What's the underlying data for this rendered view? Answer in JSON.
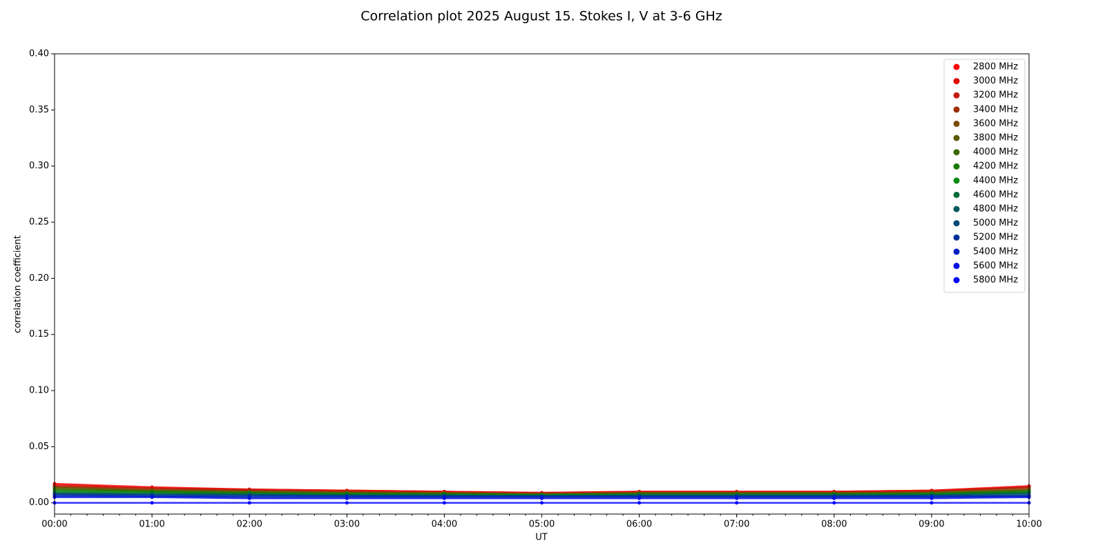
{
  "chart_data": {
    "type": "scatter",
    "title": "Correlation plot 2025 August 15. Stokes I, V at 3-6 GHz",
    "xlabel": "UT",
    "ylabel": "correlation coefficient",
    "x": [
      "00:00",
      "01:00",
      "02:00",
      "03:00",
      "04:00",
      "05:00",
      "06:00",
      "07:00",
      "08:00",
      "09:00",
      "10:00"
    ],
    "xlim": [
      "00:00",
      "10:00"
    ],
    "xticks": [
      "00:00",
      "01:00",
      "02:00",
      "03:00",
      "04:00",
      "05:00",
      "06:00",
      "07:00",
      "08:00",
      "09:00",
      "10:00"
    ],
    "ylim": [
      -0.01,
      0.4
    ],
    "yticks": [
      {
        "value": 0,
        "label": "0.00"
      },
      {
        "value": 0.05,
        "label": "0.05"
      },
      {
        "value": 0.1,
        "label": "0.10"
      },
      {
        "value": 0.15,
        "label": "0.15"
      },
      {
        "value": 0.2,
        "label": "0.20"
      },
      {
        "value": 0.25,
        "label": "0.25"
      },
      {
        "value": 0.3,
        "label": "0.30"
      },
      {
        "value": 0.35,
        "label": "0.35"
      },
      {
        "value": 0.4,
        "label": "0.40"
      }
    ],
    "legend": "upper right",
    "series": [
      {
        "name": "2800 MHz",
        "color": "#ff0000",
        "values": [
          0.017,
          0.014,
          0.012,
          0.011,
          0.01,
          0.009,
          0.01,
          0.01,
          0.01,
          0.011,
          0.015
        ]
      },
      {
        "name": "3000 MHz",
        "color": "#e00a00",
        "values": [
          0.016,
          0.013,
          0.012,
          0.011,
          0.01,
          0.009,
          0.01,
          0.01,
          0.01,
          0.011,
          0.014
        ]
      },
      {
        "name": "3200 MHz",
        "color": "#c41a10",
        "values": [
          0.015,
          0.013,
          0.011,
          0.01,
          0.009,
          0.008,
          0.009,
          0.009,
          0.009,
          0.01,
          0.014
        ]
      },
      {
        "name": "3400 MHz",
        "color": "#a03000",
        "values": [
          0.014,
          0.012,
          0.011,
          0.01,
          0.009,
          0.008,
          0.009,
          0.009,
          0.009,
          0.01,
          0.013
        ]
      },
      {
        "name": "3600 MHz",
        "color": "#7a4a00",
        "values": [
          0.014,
          0.011,
          0.01,
          0.009,
          0.009,
          0.008,
          0.009,
          0.009,
          0.009,
          0.009,
          0.012
        ]
      },
      {
        "name": "3800 MHz",
        "color": "#5a5a00",
        "values": [
          0.013,
          0.011,
          0.01,
          0.009,
          0.008,
          0.008,
          0.008,
          0.008,
          0.008,
          0.009,
          0.011
        ]
      },
      {
        "name": "4000 MHz",
        "color": "#3a6a00",
        "values": [
          0.012,
          0.01,
          0.009,
          0.008,
          0.008,
          0.007,
          0.008,
          0.008,
          0.008,
          0.008,
          0.011
        ]
      },
      {
        "name": "4200 MHz",
        "color": "#1a7a00",
        "values": [
          0.011,
          0.01,
          0.009,
          0.008,
          0.008,
          0.007,
          0.008,
          0.008,
          0.008,
          0.008,
          0.01
        ]
      },
      {
        "name": "4400 MHz",
        "color": "#008a10",
        "values": [
          0.01,
          0.009,
          0.008,
          0.008,
          0.007,
          0.007,
          0.007,
          0.007,
          0.007,
          0.008,
          0.009
        ]
      },
      {
        "name": "4600 MHz",
        "color": "#006a3a",
        "values": [
          0.009,
          0.008,
          0.008,
          0.007,
          0.007,
          0.006,
          0.007,
          0.007,
          0.007,
          0.007,
          0.009
        ]
      },
      {
        "name": "4800 MHz",
        "color": "#005a5a",
        "values": [
          0.008,
          0.008,
          0.007,
          0.007,
          0.006,
          0.006,
          0.006,
          0.006,
          0.006,
          0.007,
          0.008
        ]
      },
      {
        "name": "5000 MHz",
        "color": "#004a7a",
        "values": [
          0.008,
          0.007,
          0.007,
          0.006,
          0.006,
          0.006,
          0.006,
          0.006,
          0.006,
          0.006,
          0.007
        ]
      },
      {
        "name": "5200 MHz",
        "color": "#00309a",
        "values": [
          0.007,
          0.006,
          0.006,
          0.006,
          0.006,
          0.006,
          0.006,
          0.006,
          0.006,
          0.006,
          0.006
        ]
      },
      {
        "name": "5400 MHz",
        "color": "#0020c0",
        "values": [
          0.006,
          0.006,
          0.005,
          0.005,
          0.005,
          0.005,
          0.005,
          0.005,
          0.005,
          0.005,
          0.006
        ]
      },
      {
        "name": "5600 MHz",
        "color": "#0010e0",
        "values": [
          0.005,
          0.005,
          0.004,
          0.004,
          0.004,
          0.004,
          0.004,
          0.004,
          0.004,
          0.004,
          0.005
        ]
      },
      {
        "name": "5800 MHz",
        "color": "#0000ff",
        "values": [
          0,
          0,
          0,
          0,
          0,
          0,
          0,
          0,
          0,
          0,
          0
        ]
      }
    ]
  }
}
